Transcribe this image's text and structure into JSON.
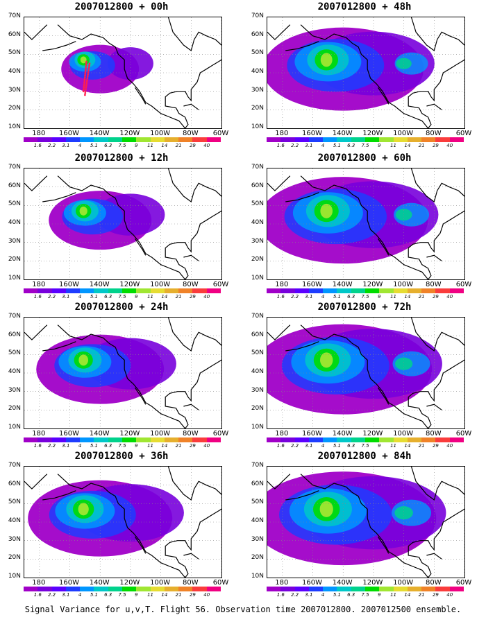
{
  "panels": [
    {
      "title": "2007012800 + 00h",
      "intensity": 0.3,
      "track": true
    },
    {
      "title": "2007012800 + 48h",
      "intensity": 0.8,
      "track": false
    },
    {
      "title": "2007012800 + 12h",
      "intensity": 0.45,
      "track": false
    },
    {
      "title": "2007012800 + 60h",
      "intensity": 0.85,
      "track": false
    },
    {
      "title": "2007012800 + 24h",
      "intensity": 0.6,
      "track": false
    },
    {
      "title": "2007012800 + 72h",
      "intensity": 0.9,
      "track": false
    },
    {
      "title": "2007012800 + 36h",
      "intensity": 0.7,
      "track": false
    },
    {
      "title": "2007012800 + 84h",
      "intensity": 0.95,
      "track": false
    }
  ],
  "y_labels": [
    "70N",
    "60N",
    "50N",
    "40N",
    "30N",
    "20N",
    "10N"
  ],
  "x_labels": [
    "180",
    "160W",
    "140W",
    "120W",
    "100W",
    "80W",
    "60W"
  ],
  "colorbar": {
    "colors": [
      "#a000c8",
      "#7800dc",
      "#5a00ff",
      "#1e3cff",
      "#0096ff",
      "#00c8c8",
      "#00d28c",
      "#00dc00",
      "#a0e632",
      "#e6dc32",
      "#e6af2d",
      "#f08228",
      "#fa3c3c",
      "#f00082"
    ],
    "labels": [
      "1.6",
      "2.2",
      "3.1",
      "4",
      "5.1",
      "6.3",
      "7.5",
      "9",
      "11",
      "14",
      "21",
      "29",
      "40"
    ]
  },
  "caption": "Signal Variance for u,v,T. Flight 56. Observation time 2007012800. 2007012500 ensemble."
}
